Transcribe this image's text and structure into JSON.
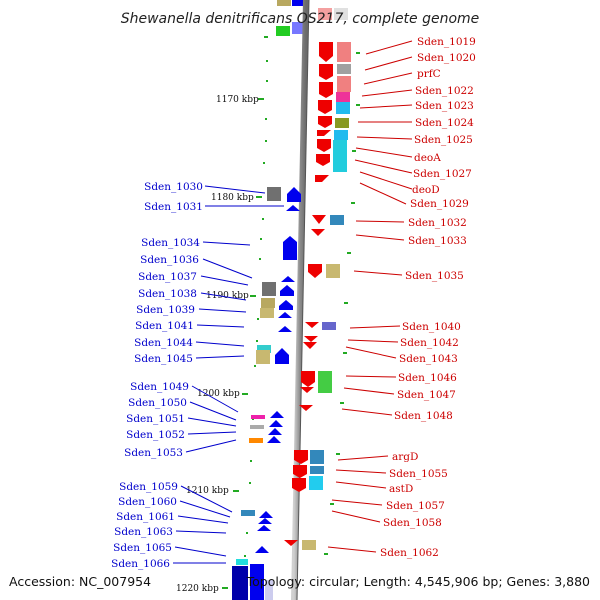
{
  "title": "Shewanella denitrificans OS217, complete genome",
  "footer": {
    "accession": "Accession: NC_007954",
    "topology": "Topology: circular; Length: 4,545,906 bp; Genes: 3,880"
  },
  "colors": {
    "axis": "#9a9a9a",
    "left_label": "#0000cc",
    "right_label": "#cc0000",
    "left_gene": "#0000ee",
    "right_gene": "#ee0000",
    "tick": "#22aa22"
  },
  "ticks": [
    {
      "label": "1170 kbp"
    },
    {
      "label": "1180 kbp"
    },
    {
      "label": "1190 kbp"
    },
    {
      "label": "1200 kbp"
    },
    {
      "label": "1210 kbp"
    },
    {
      "label": "1220 kbp"
    }
  ],
  "left_labels": [
    "Sden_1030",
    "Sden_1031",
    "Sden_1034",
    "Sden_1036",
    "Sden_1037",
    "Sden_1038",
    "Sden_1039",
    "Sden_1041",
    "Sden_1044",
    "Sden_1045",
    "Sden_1049",
    "Sden_1050",
    "Sden_1051",
    "Sden_1052",
    "Sden_1053",
    "Sden_1059",
    "Sden_1060",
    "Sden_1061",
    "Sden_1063",
    "Sden_1065",
    "Sden_1066"
  ],
  "right_labels": [
    "Sden_1019",
    "Sden_1020",
    "prfC",
    "Sden_1022",
    "Sden_1023",
    "Sden_1024",
    "Sden_1025",
    "deoA",
    "Sden_1027",
    "deoD",
    "Sden_1029",
    "Sden_1032",
    "Sden_1033",
    "Sden_1035",
    "Sden_1040",
    "Sden_1042",
    "Sden_1043",
    "Sden_1046",
    "Sden_1047",
    "Sden_1048",
    "argD",
    "Sden_1055",
    "astD",
    "Sden_1057",
    "Sden_1058",
    "Sden_1062"
  ]
}
